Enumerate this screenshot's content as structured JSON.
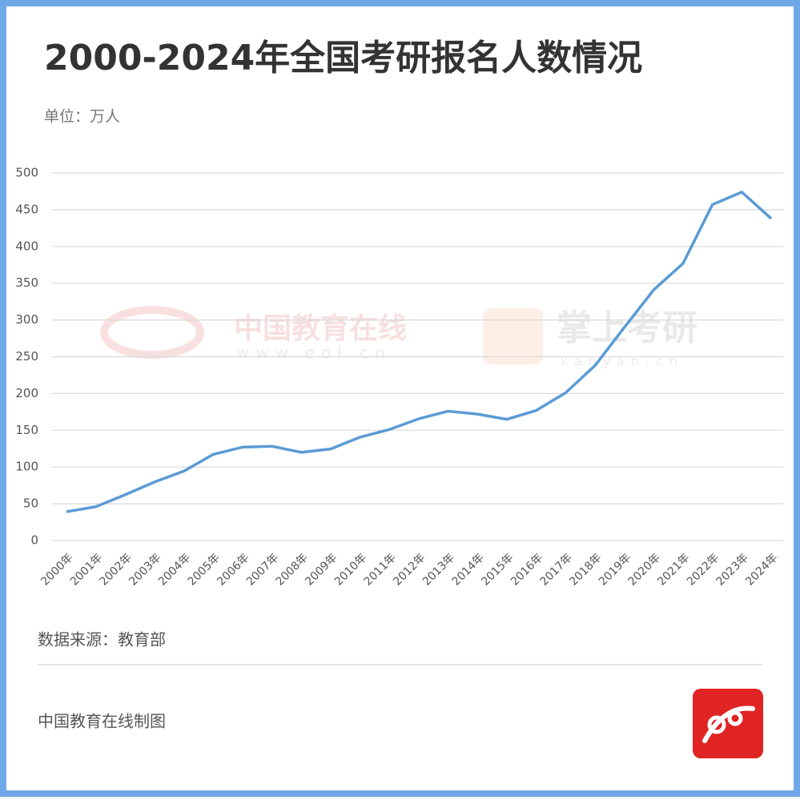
{
  "chart_data": {
    "type": "line",
    "title": "2000-2024年全国考研报名人数情况",
    "subtitle": "单位：万人",
    "source": "数据来源：教育部",
    "credit": "中国教育在线制图",
    "watermarks": [
      "中国教育在线",
      "www.eol.cn",
      "掌上考研",
      "kaoyan.cn"
    ],
    "categories": [
      "2000年",
      "2001年",
      "2002年",
      "2003年",
      "2004年",
      "2005年",
      "2006年",
      "2007年",
      "2008年",
      "2009年",
      "2010年",
      "2011年",
      "2012年",
      "2013年",
      "2014年",
      "2015年",
      "2016年",
      "2017年",
      "2018年",
      "2019年",
      "2020年",
      "2021年",
      "2022年",
      "2023年",
      "2024年"
    ],
    "values": [
      39.2,
      46,
      62.4,
      79.7,
      94.5,
      117.2,
      127.1,
      128.2,
      120,
      124.6,
      140.6,
      151.1,
      165.6,
      176,
      172,
      164.9,
      177,
      201,
      238,
      290,
      341,
      377,
      457,
      474,
      438
    ],
    "color": "#5b9bd5",
    "ylim": [
      0,
      500
    ],
    "yticks": [
      0,
      50,
      100,
      150,
      200,
      250,
      300,
      350,
      400,
      450,
      500
    ],
    "grid": true
  }
}
